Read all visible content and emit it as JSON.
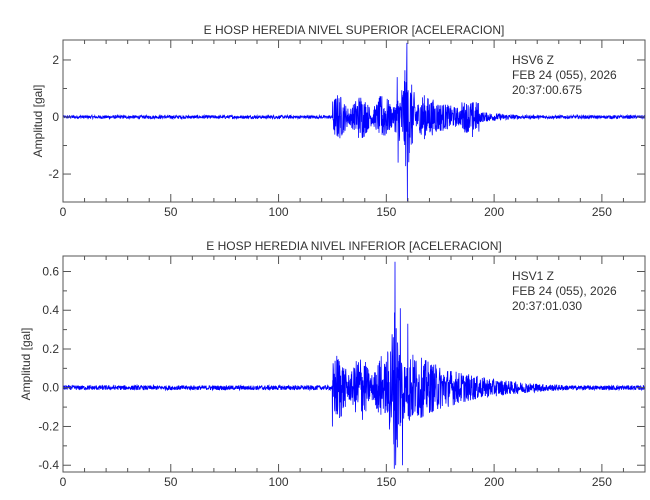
{
  "chart_data": [
    {
      "type": "line",
      "title": "E HOSP HEREDIA NIVEL SUPERIOR [ACELERACION]",
      "ylabel": "Amplitud [gal]",
      "xlabel": "",
      "xlim": [
        0,
        270
      ],
      "ylim": [
        -2.98,
        2.7
      ],
      "x_ticks": [
        0,
        50,
        100,
        150,
        200,
        250
      ],
      "y_ticks": [
        -2,
        0,
        2
      ],
      "y_tick_labels": [
        "-2",
        "0",
        "2"
      ],
      "grid": false,
      "series_color": "#0000ff",
      "annotation": [
        "HSV6   Z",
        "FEB 24 (055), 2026",
        "20:37:00.675"
      ],
      "waveform": {
        "noise_amplitude": 0.06,
        "onset_s": 125,
        "peak_time_s": 159.5,
        "peak_max": 2.6,
        "peak_min": -2.95,
        "secondary_peaks": [
          {
            "t": 155,
            "amp": 1.4
          },
          {
            "t": 155.5,
            "amp": -1.6
          },
          {
            "t": 190,
            "amp": 0.65
          },
          {
            "t": 190,
            "amp": -0.7
          }
        ],
        "coda_end_s": 200
      }
    },
    {
      "type": "line",
      "title": "E HOSP HEREDIA NIVEL INFERIOR [ACELERACION]",
      "ylabel": "Amplitud [gal]",
      "xlabel": "",
      "xlim": [
        0,
        270
      ],
      "ylim": [
        -0.435,
        0.68
      ],
      "x_ticks": [
        0,
        50,
        100,
        150,
        200,
        250
      ],
      "y_ticks": [
        -0.4,
        -0.2,
        0.0,
        0.2,
        0.4,
        0.6
      ],
      "y_tick_labels": [
        "-0.4",
        "-0.2",
        "0.0",
        "0.2",
        "0.4",
        "0.6"
      ],
      "grid": false,
      "series_color": "#0000ff",
      "annotation": [
        "HSV1   Z",
        "FEB 24 (055), 2026",
        "20:37:01.030"
      ],
      "waveform": {
        "noise_amplitude": 0.012,
        "onset_s": 125,
        "peak_time_s": 154,
        "peak_max": 0.65,
        "peak_min": -0.4,
        "secondary_peaks": [
          {
            "t": 125,
            "amp": 0.18
          },
          {
            "t": 125,
            "amp": -0.2
          },
          {
            "t": 156.5,
            "amp": 0.41
          },
          {
            "t": 157.5,
            "amp": -0.4
          },
          {
            "t": 160,
            "amp": 0.33
          }
        ],
        "coda_end_s": 215
      }
    }
  ]
}
